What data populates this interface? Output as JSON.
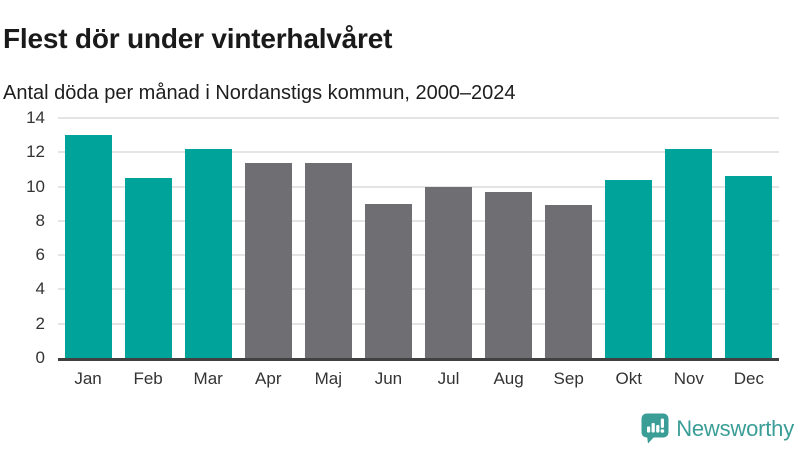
{
  "header": {
    "title": "Flest dör under vinterhalvåret",
    "subtitle": "Antal döda per månad i Nordanstigs kommun, 2000–2024"
  },
  "chart_data": {
    "type": "bar",
    "title": "Flest dör under vinterhalvåret",
    "subtitle": "Antal döda per månad i Nordanstigs kommun, 2000–2024",
    "categories": [
      "Jan",
      "Feb",
      "Mar",
      "Apr",
      "Maj",
      "Jun",
      "Jul",
      "Aug",
      "Sep",
      "Okt",
      "Nov",
      "Dec"
    ],
    "values": [
      13.0,
      10.5,
      12.2,
      11.4,
      11.4,
      9.0,
      10.0,
      9.7,
      8.9,
      10.4,
      12.2,
      10.6
    ],
    "bar_colors": [
      "#00a39a",
      "#00a39a",
      "#00a39a",
      "#6e6e73",
      "#6e6e73",
      "#6e6e73",
      "#6e6e73",
      "#6e6e73",
      "#6e6e73",
      "#00a39a",
      "#00a39a",
      "#00a39a"
    ],
    "xlabel": "",
    "ylabel": "",
    "ylim": [
      0,
      14
    ],
    "yticks": [
      0,
      2,
      4,
      6,
      8,
      10,
      12,
      14
    ],
    "grid": "horizontal",
    "legend": "none"
  },
  "colors": {
    "winter_bar": "#00a39a",
    "summer_bar": "#6e6e73",
    "gridline": "#e4e4e4",
    "axis_line": "#404040",
    "title_text": "#1a1a1a",
    "tick_text": "#333333",
    "logo_teal": "#3a9e97"
  },
  "footer": {
    "logo_text": "Newsworthy"
  }
}
